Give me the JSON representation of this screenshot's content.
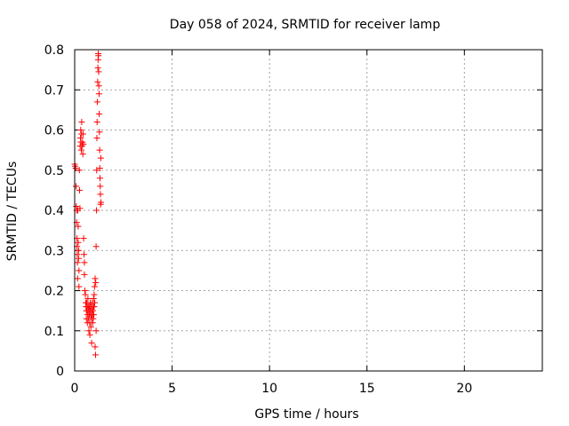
{
  "chart_data": {
    "type": "scatter",
    "title": "Day 058 of 2024, SRMTID for receiver lamp",
    "xlabel": "GPS time / hours",
    "ylabel": "SRMTID / TECUs",
    "xlim": [
      0,
      24
    ],
    "ylim": [
      0,
      0.8
    ],
    "xticks": [
      0,
      5,
      10,
      15,
      20
    ],
    "xtick_labels": [
      "0",
      "5",
      "10",
      "15",
      "20"
    ],
    "yticks": [
      0,
      0.1,
      0.2,
      0.3,
      0.4,
      0.5,
      0.6,
      0.7,
      0.8
    ],
    "ytick_labels": [
      "0",
      "0.1",
      "0.2",
      "0.3",
      "0.4",
      "0.5",
      "0.6",
      "0.7",
      "0.8"
    ],
    "grid": true,
    "marker": "+",
    "colors": {
      "series": "#ff0000",
      "axis": "#000000",
      "grid": "#a0a0a0"
    },
    "series": [
      {
        "name": "lamp",
        "points": [
          [
            0.0,
            0.515
          ],
          [
            0.02,
            0.51
          ],
          [
            0.05,
            0.505
          ],
          [
            0.07,
            0.46
          ],
          [
            0.08,
            0.41
          ],
          [
            0.1,
            0.4
          ],
          [
            0.1,
            0.37
          ],
          [
            0.12,
            0.33
          ],
          [
            0.12,
            0.31
          ],
          [
            0.13,
            0.29
          ],
          [
            0.14,
            0.27
          ],
          [
            0.15,
            0.23
          ],
          [
            0.16,
            0.4
          ],
          [
            0.18,
            0.36
          ],
          [
            0.18,
            0.32
          ],
          [
            0.2,
            0.3
          ],
          [
            0.2,
            0.28
          ],
          [
            0.22,
            0.25
          ],
          [
            0.22,
            0.21
          ],
          [
            0.24,
            0.5
          ],
          [
            0.25,
            0.45
          ],
          [
            0.27,
            0.405
          ],
          [
            0.28,
            0.56
          ],
          [
            0.3,
            0.58
          ],
          [
            0.31,
            0.6
          ],
          [
            0.32,
            0.57
          ],
          [
            0.34,
            0.55
          ],
          [
            0.35,
            0.59
          ],
          [
            0.36,
            0.62
          ],
          [
            0.38,
            0.56
          ],
          [
            0.4,
            0.57
          ],
          [
            0.42,
            0.54
          ],
          [
            0.43,
            0.59
          ],
          [
            0.45,
            0.565
          ],
          [
            0.46,
            0.33
          ],
          [
            0.48,
            0.29
          ],
          [
            0.5,
            0.27
          ],
          [
            0.5,
            0.24
          ],
          [
            0.52,
            0.2
          ],
          [
            0.55,
            0.19
          ],
          [
            0.57,
            0.17
          ],
          [
            0.58,
            0.16
          ],
          [
            0.6,
            0.15
          ],
          [
            0.6,
            0.13
          ],
          [
            0.62,
            0.17
          ],
          [
            0.63,
            0.15
          ],
          [
            0.65,
            0.12
          ],
          [
            0.65,
            0.16
          ],
          [
            0.67,
            0.14
          ],
          [
            0.68,
            0.18
          ],
          [
            0.7,
            0.13
          ],
          [
            0.7,
            0.16
          ],
          [
            0.72,
            0.15
          ],
          [
            0.73,
            0.1
          ],
          [
            0.75,
            0.14
          ],
          [
            0.76,
            0.16
          ],
          [
            0.77,
            0.12
          ],
          [
            0.78,
            0.09
          ],
          [
            0.8,
            0.15
          ],
          [
            0.8,
            0.17
          ],
          [
            0.82,
            0.14
          ],
          [
            0.83,
            0.11
          ],
          [
            0.85,
            0.16
          ],
          [
            0.86,
            0.13
          ],
          [
            0.87,
            0.07
          ],
          [
            0.88,
            0.15
          ],
          [
            0.9,
            0.14
          ],
          [
            0.9,
            0.17
          ],
          [
            0.92,
            0.12
          ],
          [
            0.93,
            0.15
          ],
          [
            0.95,
            0.13
          ],
          [
            0.96,
            0.16
          ],
          [
            0.97,
            0.18
          ],
          [
            0.98,
            0.14
          ],
          [
            1.0,
            0.16
          ],
          [
            1.0,
            0.19
          ],
          [
            1.02,
            0.21
          ],
          [
            1.03,
            0.17
          ],
          [
            1.05,
            0.23
          ],
          [
            1.05,
            0.06
          ],
          [
            1.07,
            0.04
          ],
          [
            1.08,
            0.22
          ],
          [
            1.1,
            0.1
          ],
          [
            1.1,
            0.31
          ],
          [
            1.12,
            0.4
          ],
          [
            1.13,
            0.5
          ],
          [
            1.14,
            0.58
          ],
          [
            1.15,
            0.62
          ],
          [
            1.16,
            0.67
          ],
          [
            1.18,
            0.72
          ],
          [
            1.19,
            0.755
          ],
          [
            1.2,
            0.775
          ],
          [
            1.21,
            0.79
          ],
          [
            1.22,
            0.785
          ],
          [
            1.23,
            0.745
          ],
          [
            1.24,
            0.71
          ],
          [
            1.25,
            0.69
          ],
          [
            1.26,
            0.64
          ],
          [
            1.27,
            0.595
          ],
          [
            1.28,
            0.55
          ],
          [
            1.29,
            0.505
          ],
          [
            1.3,
            0.48
          ],
          [
            1.31,
            0.46
          ],
          [
            1.32,
            0.44
          ],
          [
            1.33,
            0.415
          ],
          [
            1.34,
            0.53
          ],
          [
            1.35,
            0.42
          ]
        ]
      }
    ]
  }
}
